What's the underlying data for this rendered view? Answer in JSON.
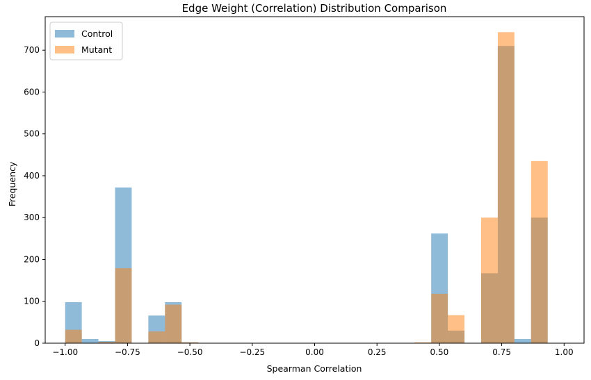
{
  "chart_data": {
    "type": "bar",
    "subtype": "histogram-overlay",
    "title": "Edge Weight (Correlation) Distribution Comparison",
    "xlabel": "Spearman Correlation",
    "ylabel": "Frequency",
    "xlim": [
      -1.08,
      1.08
    ],
    "ylim": [
      0,
      780
    ],
    "x_ticks": [
      -1.0,
      -0.75,
      -0.5,
      -0.25,
      0.0,
      0.25,
      0.5,
      0.75,
      1.0
    ],
    "x_tick_labels": [
      "−1.00",
      "−0.75",
      "−0.50",
      "−0.25",
      "0.00",
      "0.25",
      "0.50",
      "0.75",
      "1.00"
    ],
    "y_ticks": [
      0,
      100,
      200,
      300,
      400,
      500,
      600,
      700
    ],
    "y_tick_labels": [
      "0",
      "100",
      "200",
      "300",
      "400",
      "500",
      "600",
      "700"
    ],
    "bin_start": -1.0,
    "bin_width": 0.0667,
    "legend_position": "top-left",
    "series": [
      {
        "name": "Control",
        "color": "#1f77b4",
        "opacity": 0.5,
        "values": [
          98,
          10,
          5,
          372,
          0,
          66,
          98,
          2,
          0,
          0,
          0,
          0,
          0,
          0,
          0,
          0,
          0,
          0,
          0,
          0,
          0,
          0,
          262,
          30,
          0,
          167,
          710,
          10,
          300,
          0
        ]
      },
      {
        "name": "Mutant",
        "color": "#ff7f0e",
        "opacity": 0.5,
        "values": [
          32,
          0,
          3,
          179,
          0,
          28,
          92,
          2,
          0,
          0,
          0,
          0,
          0,
          0,
          0,
          0,
          0,
          0,
          0,
          0,
          0,
          2,
          118,
          67,
          0,
          300,
          743,
          0,
          435,
          0
        ]
      }
    ]
  }
}
